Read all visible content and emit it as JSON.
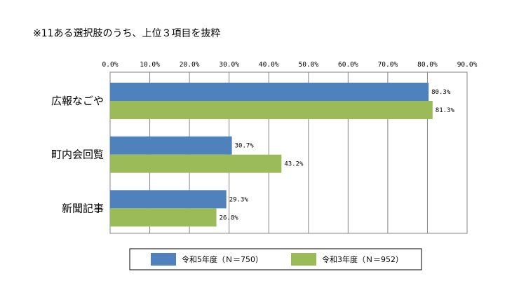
{
  "chart_data": {
    "type": "bar",
    "orientation": "horizontal",
    "title": "※11ある選択肢のうち、上位３項目を抜粋",
    "categories": [
      "広報なごや",
      "町内会回覧",
      "新聞記事"
    ],
    "series": [
      {
        "name": "令和5年度（Ｎ＝750）",
        "color": "#4F81BD",
        "values": [
          80.3,
          30.7,
          29.3
        ],
        "labels": [
          "80.3%",
          "30.7%",
          "29.3%"
        ]
      },
      {
        "name": "令和3年度（Ｎ＝952）",
        "color": "#9BBB59",
        "values": [
          81.3,
          43.2,
          26.8
        ],
        "labels": [
          "81.3%",
          "43.2%",
          "26.8%"
        ]
      }
    ],
    "xlim": [
      0,
      90
    ],
    "xticks": [
      0,
      10,
      20,
      30,
      40,
      50,
      60,
      70,
      80,
      90
    ],
    "xtick_labels": [
      "0.0%",
      "10.0%",
      "20.0%",
      "30.0%",
      "40.0%",
      "50.0%",
      "60.0%",
      "70.0%",
      "80.0%",
      "90.0%"
    ],
    "xaxis_position": "top",
    "grid": true,
    "legend_position": "bottom",
    "xlabel": "",
    "ylabel": ""
  }
}
